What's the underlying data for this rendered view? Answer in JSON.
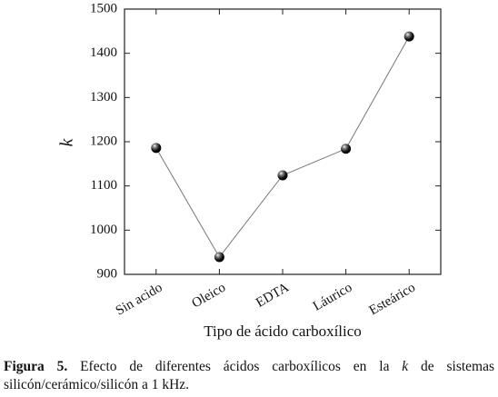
{
  "chart_data": {
    "type": "line",
    "y_label": "k",
    "x_label": "Tipo de ácido carboxílico",
    "categories": [
      "Sin acido",
      "Oleico",
      "EDTA",
      "Láurico",
      "Esteárico"
    ],
    "values": [
      1186,
      939,
      1124,
      1184,
      1438
    ],
    "color": "#777777",
    "ylim": [
      900,
      1500
    ],
    "yticks": [
      900,
      1000,
      1100,
      1200,
      1300,
      1400,
      1500
    ],
    "grid": false
  },
  "caption": {
    "label": "Figura 5.",
    "parts": [
      "Efecto de diferentes ácidos carboxílicos en la",
      "k",
      "de sistemas silicón/cerámico/silicón a 1 kHz."
    ]
  }
}
